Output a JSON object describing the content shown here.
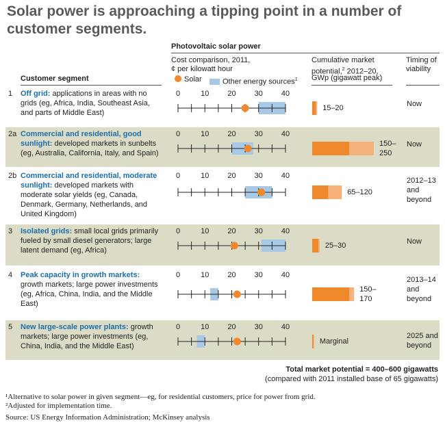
{
  "title": "Solar power is approaching a tipping point in a number of customer segments.",
  "header": {
    "pv_label": "Photovoltaic solar power",
    "segment_label": "Customer segment",
    "cost_label_1": "Cost comparison, 2011,",
    "cost_label_2": "¢ per kilowatt hour",
    "legend_solar": "Solar",
    "legend_other": "Other energy sources",
    "legend_other_sup": "1",
    "potential_1": "Cumulative market",
    "potential_2a": "potential,",
    "potential_2sup": "2",
    "potential_2b": " 2012–20,",
    "potential_3": "GWp (gigawatt peak)",
    "timing_1": "Timing of",
    "timing_2": "viability"
  },
  "colors": {
    "solar": "#f0892b",
    "solar_light": "#f6b07a",
    "other": "#a7c9e6",
    "shade": "#dcdcc6",
    "accent": "#1a6fb0"
  },
  "chart_data": {
    "type": "table",
    "axis": {
      "min": 0,
      "max": 40,
      "ticks": [
        0,
        10,
        20,
        30,
        40
      ],
      "minor_step": 5
    },
    "rows": [
      {
        "num": "1",
        "lead": "Off grid:",
        "rest": " applications in areas with no grids (eg, Africa, India, Southeast Asia, and parts of Middle East)",
        "solar": 25,
        "other": [
          30,
          40
        ],
        "pot_low": 15,
        "pot_high": 20,
        "pot_label": "15–20",
        "timing": "Now"
      },
      {
        "num": "2a",
        "lead": "Commercial and residential, good sunlight:",
        "rest": " developed markets in sunbelts (eg, Australia, California, Italy, and Spain)",
        "solar": 26,
        "other": [
          20,
          28
        ],
        "pot_low": 150,
        "pot_high": 250,
        "pot_label": "150–\n250",
        "timing": "Now"
      },
      {
        "num": "2b",
        "lead": "Commercial and residential, moderate sunlight:",
        "rest": " developed markets with moderate solar yields (eg, Canada, Denmark, Germany, Netherlands, and United Kingdom)",
        "solar": 31,
        "other": [
          25,
          35
        ],
        "pot_low": 65,
        "pot_high": 120,
        "pot_label": "65–120",
        "timing": "2012–13\nand\nbeyond"
      },
      {
        "num": "3",
        "lead": "Isolated grids:",
        "rest": " small local grids primarily fueled by small diesel generators; large latent demand (eg, Africa)",
        "solar": 21,
        "other": [
          31,
          40
        ],
        "pot_low": 25,
        "pot_high": 30,
        "pot_label": "25–30",
        "timing": "Now"
      },
      {
        "num": "4",
        "lead": "Peak capacity in growth markets:",
        "rest": " growth markets; large power investments (eg, Africa, China, India, and the Middle East)",
        "solar": 22,
        "other": [
          12,
          15
        ],
        "pot_low": 150,
        "pot_high": 170,
        "pot_label": "150–\n170",
        "timing": "2013–14\nand\nbeyond"
      },
      {
        "num": "5",
        "lead": "New large-scale power plants:",
        "rest": " growth markets; large power investments (eg, China, India, and the Middle East)",
        "solar": 22,
        "other": [
          7,
          10
        ],
        "pot_low": 5,
        "pot_high": 8,
        "pot_label": "Marginal",
        "timing": "2025 and\nbeyond"
      }
    ]
  },
  "total": {
    "line1": "Total market potential = 400–600 gigawatts",
    "line2": "(compared with 2011 installed base of 65 gigawatts)"
  },
  "footnotes": [
    "¹Alternative to solar power in given segment—eg, for residential customers, price for power from grid.",
    "²Adjusted for implementation time."
  ],
  "source": "Source: US Energy Information Administration; McKinsey analysis"
}
